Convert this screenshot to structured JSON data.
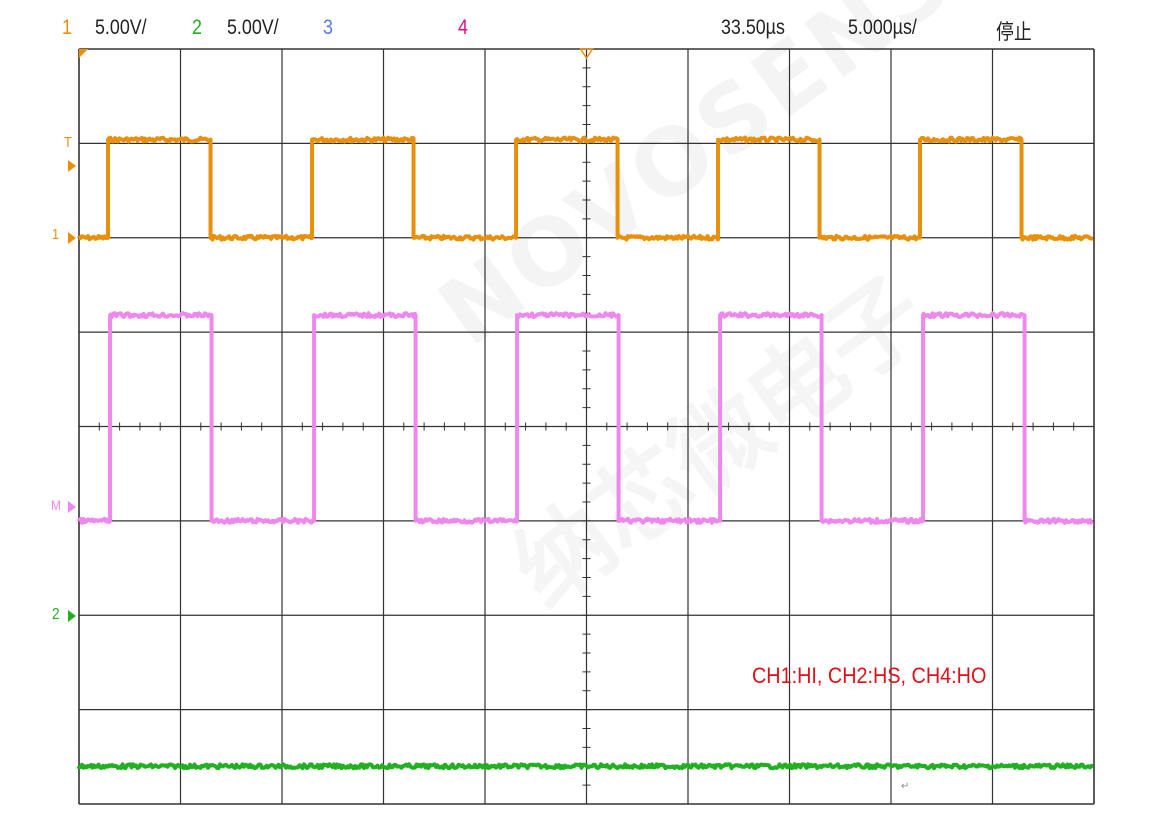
{
  "header": {
    "ch1_label": "1",
    "ch1_scale": "5.00V/",
    "ch2_label": "2",
    "ch2_scale": "5.00V/",
    "ch3_label": "3",
    "ch4_label": "4",
    "trigger_time": "33.50µs",
    "timebase": "5.000µs/",
    "run_status": "停止"
  },
  "colors": {
    "ch1": "#e8900a",
    "ch2": "#22b022",
    "ch3": "#5577ee",
    "ch4": "#ee88ee",
    "ch4_label": "#e0107a",
    "annotation": "#e0101a",
    "grid": "#333333"
  },
  "markers": {
    "trigger": "T",
    "ch1": "1",
    "math": "M",
    "ch2": "2"
  },
  "annotation": "CH1:HI, CH2:HS, CH4:HO",
  "return_mark": "↵",
  "watermark": {
    "brand": "NOVOSENSE",
    "chinese": "纳芯微电子"
  },
  "chart_data": {
    "type": "line",
    "grid": true,
    "x_divisions": 10,
    "y_divisions": 8,
    "x_unit": "µs",
    "xlim": [
      0,
      50
    ],
    "series": [
      {
        "name": "CH1:HI",
        "channel": "1",
        "color": "#e8900a",
        "ground_div": 2,
        "volts_per_div": 5,
        "low": 0,
        "high": 5.2,
        "rise_times": [
          1.43,
          11.48,
          21.53,
          31.48,
          41.43
        ],
        "fall_times": [
          6.48,
          16.48,
          26.53,
          36.48,
          46.43
        ]
      },
      {
        "name": "CH2:HS",
        "channel": "2",
        "color": "#22b022",
        "ground_div": -2,
        "volts_per_div": 5,
        "low": -8,
        "high": -8,
        "rise_times": [],
        "fall_times": []
      },
      {
        "name": "CH4:HO",
        "channel": "4",
        "color": "#ee88ee",
        "ground_div": -1,
        "volts_per_div": 5,
        "low": 0,
        "high": 10.9,
        "rise_times": [
          1.53,
          11.58,
          21.58,
          31.58,
          41.58
        ],
        "fall_times": [
          6.53,
          16.58,
          26.58,
          36.58,
          46.58
        ]
      }
    ]
  }
}
